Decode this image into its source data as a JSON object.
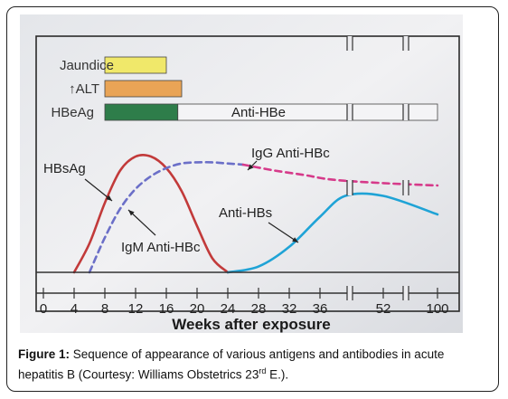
{
  "figure": {
    "caption_label": "Figure 1:",
    "caption_text_before_sup": "Sequence of appearance of various antigens and antibodies in acute hepatitis B (Courtesy: Williams Obstetrics 23",
    "caption_sup": "rd",
    "caption_text_after_sup": " E.)."
  },
  "chart_data": {
    "type": "line",
    "xlabel": "Weeks after exposure",
    "x_ticks": [
      "0",
      "4",
      "8",
      "12",
      "16",
      "20",
      "24",
      "28",
      "32",
      "36",
      "52",
      "100"
    ],
    "bars": [
      {
        "name": "Jaundice",
        "start": 8,
        "end": 16,
        "color": "#f0e86a"
      },
      {
        "name": "↑ALT",
        "start": 8,
        "end": 18,
        "color": "#e9a456"
      },
      {
        "name": "HBeAg",
        "start": 8,
        "end": 17.5,
        "color": "#2e7d4a"
      }
    ],
    "band": {
      "label": "Anti-HBe",
      "start": 17.5,
      "end": 100
    },
    "series": [
      {
        "name": "HBsAg",
        "color": "#c23a3a",
        "style": "solid",
        "x": [
          4,
          6,
          8,
          10,
          12,
          14,
          16,
          18,
          20,
          22,
          24
        ],
        "y": [
          0,
          0.25,
          0.6,
          0.88,
          1.0,
          1.0,
          0.9,
          0.7,
          0.4,
          0.12,
          0
        ]
      },
      {
        "name": "IgM Anti-HBc",
        "color": "#6b6fc8",
        "style": "dashed",
        "x": [
          6,
          8,
          10,
          12,
          14,
          16,
          18,
          20,
          22,
          24,
          26
        ],
        "y": [
          0,
          0.3,
          0.55,
          0.72,
          0.83,
          0.9,
          0.94,
          0.95,
          0.95,
          0.94,
          0.93
        ]
      },
      {
        "name": "IgG Anti-HBc",
        "color": "#d63a8a",
        "style": "dashed",
        "x": [
          26,
          30,
          34,
          38,
          52,
          100
        ],
        "y": [
          0.93,
          0.88,
          0.84,
          0.8,
          0.77,
          0.75
        ]
      },
      {
        "name": "Anti-HBs",
        "color": "#1fa3d6",
        "style": "solid",
        "x": [
          24,
          28,
          32,
          36,
          40,
          52,
          100
        ],
        "y": [
          0,
          0.05,
          0.22,
          0.48,
          0.66,
          0.66,
          0.5
        ]
      }
    ]
  }
}
